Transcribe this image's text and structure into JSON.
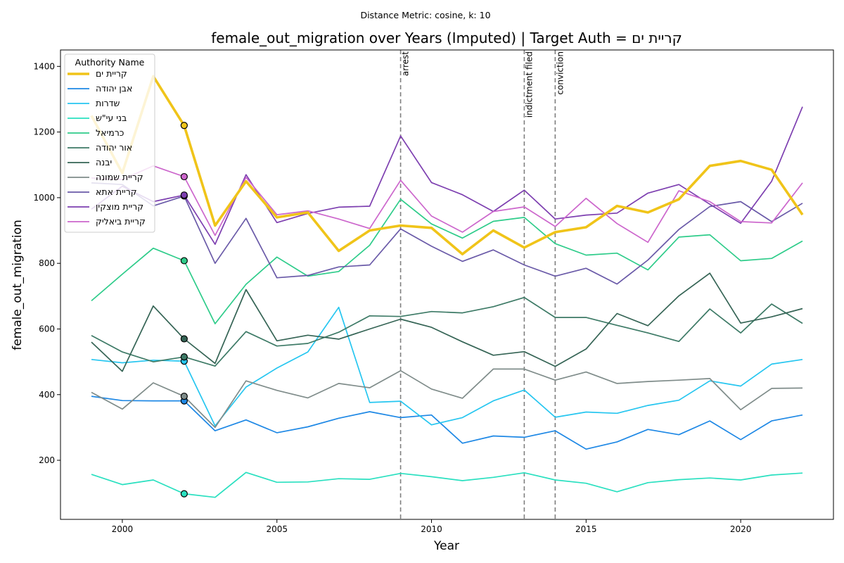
{
  "chart_data": {
    "type": "line",
    "suptitle": "Distance Metric: cosine, k: 10",
    "title": "female_out_migration over Years (Imputed) | Target Auth = קריית ים",
    "xlabel": "Year",
    "ylabel": "female_out_migration",
    "xlim": [
      1998,
      2023
    ],
    "ylim": [
      20,
      1450
    ],
    "xticks": [
      2000,
      2005,
      2010,
      2015,
      2020
    ],
    "yticks": [
      200,
      400,
      600,
      800,
      1000,
      1200,
      1400
    ],
    "grid": false,
    "legend": {
      "title": "Authority Name",
      "placement": "top-left"
    },
    "x": [
      1999,
      2000,
      2001,
      2002,
      2003,
      2004,
      2005,
      2006,
      2007,
      2008,
      2009,
      2010,
      2011,
      2012,
      2013,
      2014,
      2015,
      2016,
      2017,
      2018,
      2019,
      2020,
      2021,
      2022
    ],
    "events": [
      {
        "x": 2009,
        "label": "arrest"
      },
      {
        "x": 2013,
        "label": "indictment filed"
      },
      {
        "x": 2014,
        "label": "conviction"
      }
    ],
    "imputed_year": 2002,
    "series": [
      {
        "name": "קריית ים",
        "color": "#f0c419",
        "target": true,
        "values": [
          1250,
          1075,
          1370,
          1220,
          915,
          1050,
          940,
          955,
          838,
          900,
          915,
          908,
          828,
          900,
          848,
          895,
          910,
          975,
          955,
          995,
          1097,
          1112,
          1085,
          948
        ]
      },
      {
        "name": "אבן יהודה",
        "color": "#1e88e5",
        "values": [
          395,
          382,
          381,
          381,
          290,
          323,
          284,
          302,
          328,
          348,
          330,
          338,
          252,
          274,
          270,
          290,
          234,
          256,
          294,
          278,
          320,
          263,
          320,
          338
        ]
      },
      {
        "name": "שדרות",
        "color": "#26c6f0",
        "values": [
          507,
          497,
          505,
          502,
          305,
          423,
          481,
          530,
          666,
          376,
          380,
          308,
          330,
          381,
          414,
          331,
          347,
          343,
          367,
          383,
          442,
          426,
          493,
          507
        ]
      },
      {
        "name": "בני עי\"ש",
        "color": "#2ae0c0",
        "values": [
          157,
          126,
          140,
          98,
          87,
          163,
          133,
          134,
          144,
          142,
          160,
          150,
          138,
          148,
          162,
          140,
          130,
          104,
          132,
          141,
          146,
          140,
          155,
          161
        ]
      },
      {
        "name": "כרמיאל",
        "color": "#2ecc8a",
        "values": [
          686,
          767,
          846,
          808,
          616,
          736,
          819,
          761,
          775,
          855,
          995,
          920,
          877,
          928,
          940,
          860,
          825,
          831,
          780,
          880,
          887,
          808,
          815,
          868
        ]
      },
      {
        "name": "אור יהודה",
        "color": "#3d7a66",
        "values": [
          580,
          530,
          500,
          515,
          487,
          592,
          548,
          556,
          590,
          640,
          638,
          653,
          649,
          668,
          696,
          635,
          635,
          611,
          588,
          562,
          661,
          588,
          676,
          617
        ]
      },
      {
        "name": "יבנה",
        "color": "#356455",
        "values": [
          560,
          471,
          670,
          570,
          495,
          720,
          564,
          581,
          569,
          600,
          630,
          605,
          561,
          520,
          531,
          486,
          539,
          647,
          610,
          701,
          770,
          618,
          637,
          662
        ]
      },
      {
        "name": "קריית שמונה",
        "color": "#7f8c8a",
        "values": [
          407,
          356,
          436,
          395,
          300,
          442,
          413,
          390,
          434,
          421,
          473,
          417,
          389,
          478,
          478,
          444,
          469,
          434,
          440,
          444,
          449,
          354,
          419,
          420
        ]
      },
      {
        "name": "קריית אתא",
        "color": "#6a5aa8",
        "values": [
          1045,
          1040,
          975,
          1005,
          800,
          937,
          756,
          763,
          789,
          795,
          905,
          852,
          806,
          841,
          795,
          761,
          785,
          737,
          810,
          903,
          973,
          988,
          927,
          983
        ]
      },
      {
        "name": "קריית מוצקין",
        "color": "#7d3fb0",
        "values": [
          965,
          1035,
          988,
          1008,
          858,
          1070,
          924,
          952,
          971,
          974,
          1188,
          1046,
          1009,
          958,
          1023,
          935,
          947,
          953,
          1014,
          1040,
          980,
          922,
          1050,
          1277
        ]
      },
      {
        "name": "קריית ביאליק",
        "color": "#cc66cc",
        "values": [
          1060,
          1055,
          1097,
          1064,
          885,
          1062,
          948,
          960,
          935,
          906,
          1053,
          944,
          895,
          958,
          972,
          912,
          998,
          921,
          864,
          1021,
          988,
          927,
          923,
          1045
        ]
      }
    ]
  }
}
